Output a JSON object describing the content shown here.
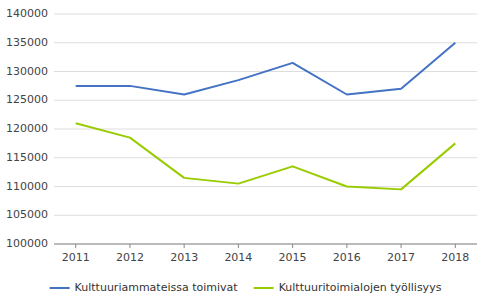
{
  "chart_data": {
    "type": "line",
    "x": [
      2011,
      2012,
      2013,
      2014,
      2015,
      2016,
      2017,
      2018
    ],
    "xlim": [
      2010.6,
      2018.4
    ],
    "xticks": [
      2011,
      2012,
      2013,
      2014,
      2015,
      2016,
      2017,
      2018
    ],
    "series": [
      {
        "name": "Kulttuuriammateissa toimivat",
        "color": "#4472C4",
        "values": [
          127500,
          127500,
          126000,
          128500,
          131500,
          126000,
          127000,
          135000
        ]
      },
      {
        "name": "Kulttuuritoimialojen työllisyys",
        "color": "#99CC00",
        "values": [
          121000,
          118500,
          111500,
          110500,
          113500,
          110000,
          109500,
          117500
        ]
      }
    ],
    "ylim": [
      100000,
      140000
    ],
    "yticks": [
      100000,
      105000,
      110000,
      115000,
      120000,
      125000,
      130000,
      135000,
      140000
    ],
    "grid": true,
    "legend": "bottom"
  }
}
